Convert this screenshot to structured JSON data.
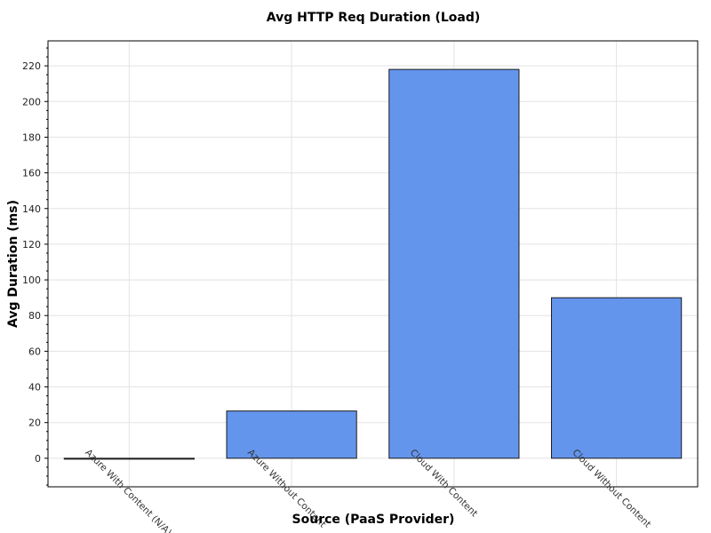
{
  "chart_data": {
    "type": "bar",
    "title": "Avg HTTP Req Duration (Load)",
    "xlabel": "Source (PaaS Provider)",
    "ylabel": "Avg Duration (ms)",
    "categories": [
      "Azure With Content (N/A)",
      "Azure Without Content",
      "Cloud With Content",
      "Cloud Without Content"
    ],
    "values": [
      0,
      26.5,
      218,
      90
    ],
    "ylim": [
      -16,
      234
    ],
    "yticks": [
      0,
      20,
      40,
      60,
      80,
      100,
      120,
      140,
      160,
      180,
      200,
      220
    ],
    "bar_color": "#6495ED",
    "grid": true,
    "legend": "none"
  }
}
